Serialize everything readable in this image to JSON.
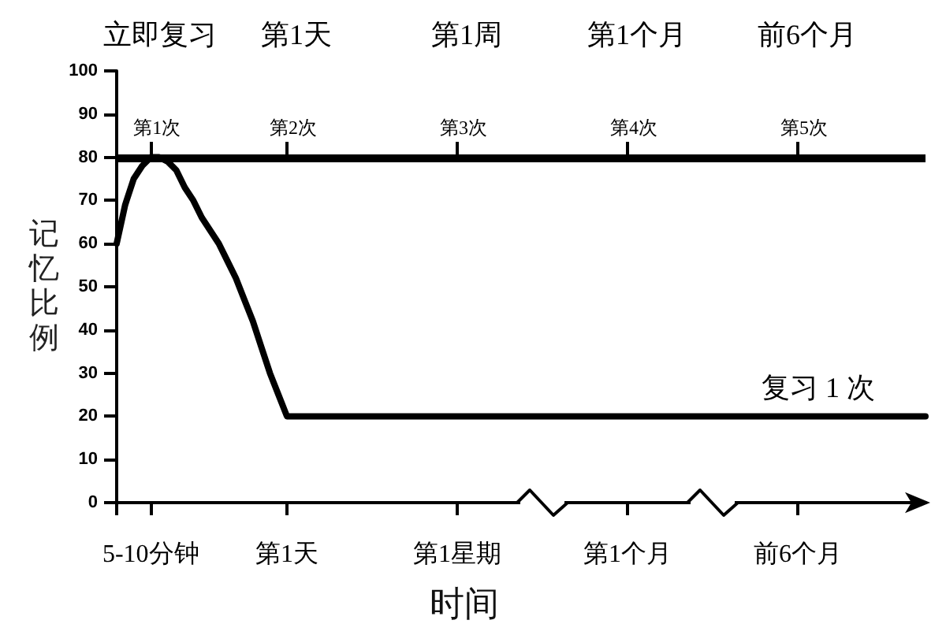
{
  "chart_data": {
    "type": "line",
    "xlabel": "时间",
    "ylabel": "记忆比例",
    "categories": [
      null,
      null,
      null,
      null,
      "5-10分钟",
      null,
      null,
      null,
      null,
      null,
      null,
      null,
      null,
      null,
      null,
      null,
      null,
      null,
      null,
      null,
      "第1天",
      null,
      null,
      null,
      null,
      null,
      null,
      null,
      null,
      null,
      null,
      null,
      null,
      null,
      null,
      null,
      null,
      null,
      null,
      null,
      "第1星期",
      null,
      null,
      null,
      null,
      null,
      null,
      null,
      null,
      null,
      null,
      null,
      null,
      null,
      null,
      null,
      null,
      null,
      null,
      null,
      "第1个月",
      null,
      null,
      null,
      null,
      null,
      null,
      null,
      null,
      null,
      null,
      null,
      null,
      null,
      null,
      null,
      null,
      null,
      null,
      null,
      "前6个月",
      null,
      null,
      null,
      null,
      null,
      null,
      null,
      null,
      null,
      null,
      null,
      null,
      null,
      null,
      null
    ],
    "series": [
      {
        "name": "复习 1 次",
        "color": "#000000",
        "values": [
          60,
          69,
          75,
          78,
          80,
          80,
          79,
          77,
          73,
          70,
          66,
          63,
          60,
          56,
          52,
          47,
          42,
          36,
          30,
          25,
          20,
          20,
          20,
          20,
          20,
          20,
          20,
          20,
          20,
          20,
          20,
          20,
          20,
          20,
          20,
          20,
          20,
          20,
          20,
          20,
          20,
          20,
          20,
          20,
          20,
          20,
          20,
          20,
          20,
          20,
          20,
          20,
          20,
          20,
          20,
          20,
          20,
          20,
          20,
          20,
          20,
          20,
          20,
          20,
          20,
          20,
          20,
          20,
          20,
          20,
          20,
          20,
          20,
          20,
          20,
          20,
          20,
          20,
          20,
          20,
          20,
          20,
          20,
          20,
          20,
          20,
          20,
          20,
          20,
          20,
          20,
          20,
          20,
          20,
          20,
          20
        ]
      }
    ],
    "ylim": [
      0,
      100
    ],
    "yticks": [
      0,
      10,
      20,
      30,
      40,
      50,
      60,
      70,
      80,
      90,
      100
    ],
    "ref_lines": [
      {
        "axis": "y",
        "value": 80,
        "color": "#000000"
      }
    ],
    "annotations": [
      "立即复习",
      "第1天",
      "第1周",
      "第1个月",
      "前6个月",
      {
        "text": "第1次",
        "x": "5-10分钟",
        "y": 80
      },
      {
        "text": "第2次",
        "x": "第1天",
        "y": 80
      },
      {
        "text": "第3次",
        "x": "第1星期",
        "y": 80
      },
      {
        "text": "第4次",
        "x": "第1个月",
        "y": 80
      },
      {
        "text": "第5次",
        "x": "前6个月",
        "y": 80
      }
    ],
    "grid": false,
    "legend": false,
    "marker": "none",
    "line_style": "solid"
  }
}
